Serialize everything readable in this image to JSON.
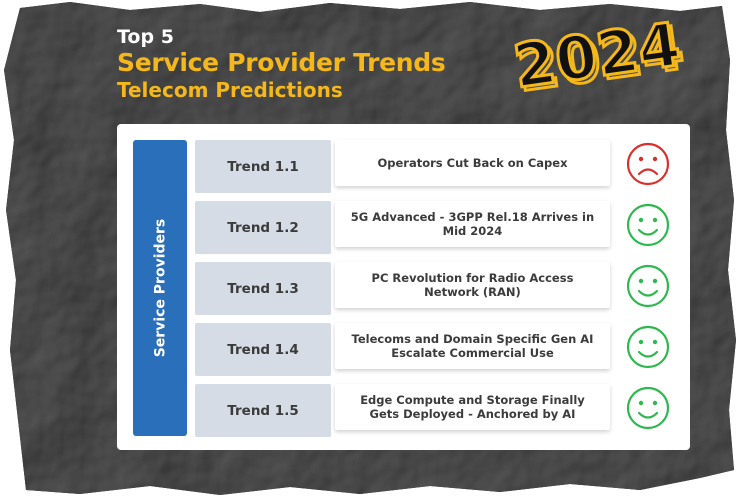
{
  "heading": {
    "line1": "Top 5",
    "line2": "Service Provider Trends",
    "line3": "Telecom Predictions"
  },
  "year": "2024",
  "side_label": "Service Providers",
  "colors": {
    "accent_yellow": "#f5b81c",
    "side_blue": "#2a6fb9",
    "trend_grey": "#d6dce5",
    "happy_green": "#2eb84f",
    "sad_red": "#d9302e"
  },
  "trends": [
    {
      "label": "Trend 1.1",
      "text": "Operators Cut Back on Capex",
      "sentiment": "sad",
      "icon": "sad-face-icon"
    },
    {
      "label": "Trend 1.2",
      "text": "5G Advanced - 3GPP Rel.18 Arrives in Mid 2024",
      "sentiment": "happy",
      "icon": "happy-face-icon"
    },
    {
      "label": "Trend 1.3",
      "text": "PC Revolution for Radio Access Network (RAN)",
      "sentiment": "happy",
      "icon": "happy-face-icon"
    },
    {
      "label": "Trend 1.4",
      "text": "Telecoms and Domain Specific Gen AI Escalate Commercial Use",
      "sentiment": "happy",
      "icon": "happy-face-icon"
    },
    {
      "label": "Trend 1.5",
      "text": "Edge Compute and Storage Finally Gets Deployed - Anchored by AI",
      "sentiment": "happy",
      "icon": "happy-face-icon"
    }
  ]
}
